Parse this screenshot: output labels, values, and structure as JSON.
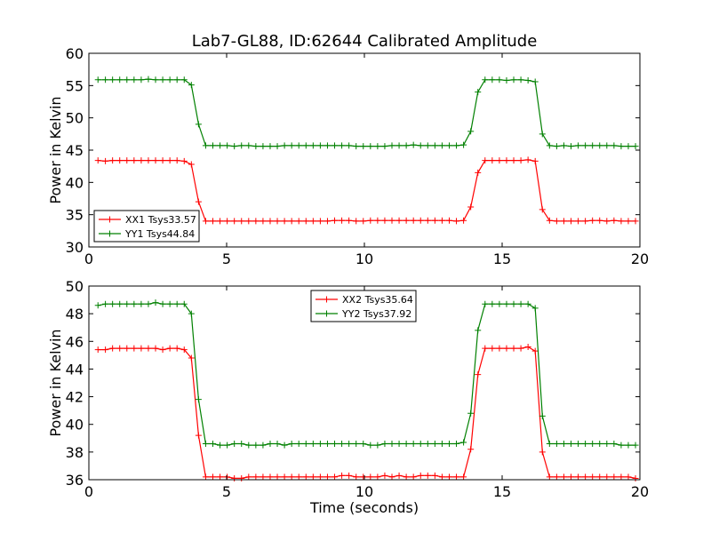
{
  "chart_data": [
    {
      "type": "line",
      "title": "Lab7-GL88, ID:62644 Calibrated Amplitude",
      "xlabel": "",
      "ylabel": "Power in Kelvin",
      "xlim": [
        0,
        20
      ],
      "ylim": [
        30,
        60
      ],
      "xticks": [
        0,
        5,
        10,
        15,
        20
      ],
      "yticks": [
        30,
        35,
        40,
        45,
        50,
        55,
        60
      ],
      "legend_placement": "lower-left",
      "x": [
        0.33,
        0.6,
        0.86,
        1.12,
        1.38,
        1.64,
        1.9,
        2.16,
        2.42,
        2.68,
        2.94,
        3.2,
        3.46,
        3.72,
        3.98,
        4.24,
        4.5,
        4.76,
        5.02,
        5.28,
        5.54,
        5.8,
        6.06,
        6.32,
        6.58,
        6.84,
        7.1,
        7.36,
        7.62,
        7.88,
        8.14,
        8.4,
        8.66,
        8.92,
        9.18,
        9.44,
        9.7,
        9.96,
        10.22,
        10.48,
        10.74,
        11.0,
        11.26,
        11.52,
        11.78,
        12.04,
        12.3,
        12.56,
        12.82,
        13.08,
        13.34,
        13.6,
        13.86,
        14.12,
        14.38,
        14.64,
        14.9,
        15.16,
        15.42,
        15.68,
        15.94,
        16.2,
        16.46,
        16.72,
        16.98,
        17.24,
        17.5,
        17.76,
        18.02,
        18.28,
        18.54,
        18.8,
        19.06,
        19.32,
        19.58,
        19.84
      ],
      "series": [
        {
          "name": "XX1 Tsys33.57",
          "color": "#ff0000",
          "values": [
            43.4,
            43.3,
            43.4,
            43.4,
            43.4,
            43.4,
            43.4,
            43.4,
            43.4,
            43.4,
            43.4,
            43.4,
            43.3,
            42.8,
            37.0,
            34.0,
            34.0,
            34.0,
            34.0,
            34.0,
            34.0,
            34.0,
            34.0,
            34.0,
            34.0,
            34.0,
            34.0,
            34.0,
            34.0,
            34.0,
            34.0,
            34.0,
            34.0,
            34.1,
            34.1,
            34.1,
            34.0,
            34.0,
            34.1,
            34.1,
            34.1,
            34.1,
            34.1,
            34.1,
            34.1,
            34.1,
            34.1,
            34.1,
            34.1,
            34.1,
            34.0,
            34.1,
            36.2,
            41.5,
            43.4,
            43.4,
            43.4,
            43.4,
            43.4,
            43.4,
            43.5,
            43.3,
            35.8,
            34.1,
            34.0,
            34.0,
            34.0,
            34.0,
            34.0,
            34.1,
            34.1,
            34.0,
            34.1,
            34.0,
            34.0,
            34.0
          ]
        },
        {
          "name": "YY1 Tsys44.84",
          "color": "#008000",
          "values": [
            55.9,
            55.9,
            55.9,
            55.9,
            55.9,
            55.9,
            55.9,
            56.0,
            55.9,
            55.9,
            55.9,
            55.9,
            55.9,
            55.1,
            49.0,
            45.7,
            45.7,
            45.7,
            45.7,
            45.6,
            45.7,
            45.7,
            45.6,
            45.6,
            45.6,
            45.6,
            45.7,
            45.7,
            45.7,
            45.7,
            45.7,
            45.7,
            45.7,
            45.7,
            45.7,
            45.7,
            45.6,
            45.6,
            45.6,
            45.6,
            45.6,
            45.7,
            45.7,
            45.7,
            45.8,
            45.7,
            45.7,
            45.7,
            45.7,
            45.7,
            45.7,
            45.8,
            47.9,
            54.0,
            55.9,
            55.9,
            55.9,
            55.8,
            55.9,
            55.9,
            55.8,
            55.6,
            47.5,
            45.7,
            45.6,
            45.7,
            45.6,
            45.7,
            45.7,
            45.7,
            45.7,
            45.7,
            45.7,
            45.6,
            45.6,
            45.6
          ]
        }
      ]
    },
    {
      "type": "line",
      "title": "",
      "xlabel": "Time (seconds)",
      "ylabel": "Power in Kelvin",
      "xlim": [
        0,
        20
      ],
      "ylim": [
        36,
        50
      ],
      "xticks": [
        0,
        5,
        10,
        15,
        20
      ],
      "yticks": [
        36,
        38,
        40,
        42,
        44,
        46,
        48,
        50
      ],
      "legend_placement": "upper-center",
      "x": [
        0.33,
        0.6,
        0.86,
        1.12,
        1.38,
        1.64,
        1.9,
        2.16,
        2.42,
        2.68,
        2.94,
        3.2,
        3.46,
        3.72,
        3.98,
        4.24,
        4.5,
        4.76,
        5.02,
        5.28,
        5.54,
        5.8,
        6.06,
        6.32,
        6.58,
        6.84,
        7.1,
        7.36,
        7.62,
        7.88,
        8.14,
        8.4,
        8.66,
        8.92,
        9.18,
        9.44,
        9.7,
        9.96,
        10.22,
        10.48,
        10.74,
        11.0,
        11.26,
        11.52,
        11.78,
        12.04,
        12.3,
        12.56,
        12.82,
        13.08,
        13.34,
        13.6,
        13.86,
        14.12,
        14.38,
        14.64,
        14.9,
        15.16,
        15.42,
        15.68,
        15.94,
        16.2,
        16.46,
        16.72,
        16.98,
        17.24,
        17.5,
        17.76,
        18.02,
        18.28,
        18.54,
        18.8,
        19.06,
        19.32,
        19.58,
        19.84
      ],
      "series": [
        {
          "name": "XX2 Tsys35.64",
          "color": "#ff0000",
          "values": [
            45.4,
            45.4,
            45.5,
            45.5,
            45.5,
            45.5,
            45.5,
            45.5,
            45.5,
            45.4,
            45.5,
            45.5,
            45.4,
            44.8,
            39.2,
            36.2,
            36.2,
            36.2,
            36.2,
            36.1,
            36.1,
            36.2,
            36.2,
            36.2,
            36.2,
            36.2,
            36.2,
            36.2,
            36.2,
            36.2,
            36.2,
            36.2,
            36.2,
            36.2,
            36.3,
            36.3,
            36.2,
            36.2,
            36.2,
            36.2,
            36.3,
            36.2,
            36.3,
            36.2,
            36.2,
            36.3,
            36.3,
            36.3,
            36.2,
            36.2,
            36.2,
            36.2,
            38.2,
            43.6,
            45.5,
            45.5,
            45.5,
            45.5,
            45.5,
            45.5,
            45.6,
            45.3,
            38.0,
            36.2,
            36.2,
            36.2,
            36.2,
            36.2,
            36.2,
            36.2,
            36.2,
            36.2,
            36.2,
            36.2,
            36.2,
            36.1
          ]
        },
        {
          "name": "YY2 Tsys37.92",
          "color": "#008000",
          "values": [
            48.6,
            48.7,
            48.7,
            48.7,
            48.7,
            48.7,
            48.7,
            48.7,
            48.8,
            48.7,
            48.7,
            48.7,
            48.7,
            48.0,
            41.8,
            38.6,
            38.6,
            38.5,
            38.5,
            38.6,
            38.6,
            38.5,
            38.5,
            38.5,
            38.6,
            38.6,
            38.5,
            38.6,
            38.6,
            38.6,
            38.6,
            38.6,
            38.6,
            38.6,
            38.6,
            38.6,
            38.6,
            38.6,
            38.5,
            38.5,
            38.6,
            38.6,
            38.6,
            38.6,
            38.6,
            38.6,
            38.6,
            38.6,
            38.6,
            38.6,
            38.6,
            38.7,
            40.8,
            46.8,
            48.7,
            48.7,
            48.7,
            48.7,
            48.7,
            48.7,
            48.7,
            48.4,
            40.6,
            38.6,
            38.6,
            38.6,
            38.6,
            38.6,
            38.6,
            38.6,
            38.6,
            38.6,
            38.6,
            38.5,
            38.5,
            38.5
          ]
        }
      ]
    }
  ]
}
